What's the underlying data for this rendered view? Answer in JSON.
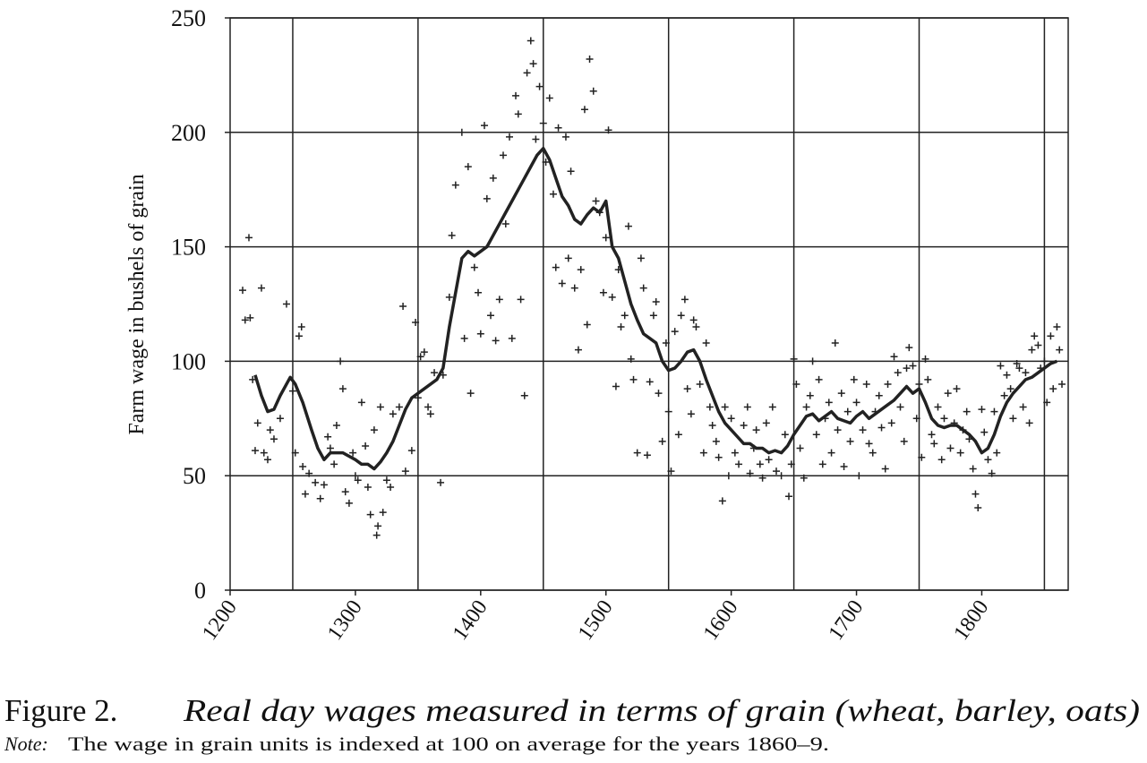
{
  "chart_data": {
    "type": "scatter",
    "y_label": "Farm wage in bushels of grain",
    "caption_label": "Figure 2.",
    "caption": "Real day wages measured in terms of grain (wheat, barley, oats)",
    "note_label": "Note:",
    "note": "The wage in grain units is indexed at 100 on average for the years 1860–9.",
    "xlim": [
      1200,
      1869
    ],
    "ylim": [
      0,
      250
    ],
    "xticks": [
      1200,
      1300,
      1400,
      1500,
      1600,
      1700,
      1800
    ],
    "xgrid": [
      1250,
      1350,
      1450,
      1550,
      1650,
      1750,
      1850
    ],
    "yticks": [
      0,
      50,
      100,
      150,
      200,
      250
    ],
    "grid": true,
    "series": [
      {
        "type": "scatter",
        "color": "#222222",
        "x": [
          1210,
          1212,
          1215,
          1216,
          1218,
          1220,
          1222,
          1225,
          1227,
          1230,
          1232,
          1235,
          1240,
          1245,
          1250,
          1252,
          1255,
          1257,
          1258,
          1260,
          1263,
          1268,
          1272,
          1275,
          1278,
          1280,
          1283,
          1285,
          1288,
          1290,
          1292,
          1295,
          1298,
          1300,
          1302,
          1305,
          1308,
          1310,
          1312,
          1315,
          1317,
          1318,
          1320,
          1322,
          1325,
          1328,
          1330,
          1335,
          1338,
          1340,
          1345,
          1348,
          1350,
          1352,
          1355,
          1358,
          1360,
          1363,
          1368,
          1370,
          1375,
          1377,
          1380,
          1385,
          1387,
          1390,
          1392,
          1395,
          1398,
          1400,
          1403,
          1405,
          1408,
          1410,
          1412,
          1415,
          1418,
          1420,
          1423,
          1425,
          1428,
          1430,
          1432,
          1435,
          1437,
          1440,
          1442,
          1444,
          1447,
          1450,
          1452,
          1455,
          1458,
          1460,
          1462,
          1465,
          1468,
          1470,
          1472,
          1475,
          1478,
          1480,
          1483,
          1485,
          1487,
          1490,
          1492,
          1495,
          1498,
          1500,
          1502,
          1505,
          1508,
          1510,
          1512,
          1515,
          1518,
          1520,
          1522,
          1525,
          1528,
          1530,
          1533,
          1535,
          1538,
          1540,
          1542,
          1545,
          1548,
          1550,
          1552,
          1555,
          1558,
          1560,
          1563,
          1565,
          1568,
          1570,
          1572,
          1575,
          1578,
          1580,
          1583,
          1585,
          1588,
          1590,
          1593,
          1595,
          1598,
          1600,
          1603,
          1606,
          1610,
          1613,
          1615,
          1618,
          1620,
          1623,
          1625,
          1628,
          1630,
          1633,
          1636,
          1640,
          1643,
          1646,
          1648,
          1650,
          1652,
          1655,
          1658,
          1660,
          1663,
          1665,
          1668,
          1670,
          1673,
          1675,
          1678,
          1680,
          1683,
          1685,
          1688,
          1690,
          1693,
          1695,
          1698,
          1700,
          1702,
          1705,
          1708,
          1710,
          1713,
          1715,
          1718,
          1720,
          1723,
          1725,
          1728,
          1730,
          1733,
          1735,
          1738,
          1740,
          1742,
          1745,
          1748,
          1750,
          1752,
          1755,
          1757,
          1760,
          1762,
          1765,
          1768,
          1770,
          1773,
          1775,
          1778,
          1780,
          1783,
          1785,
          1788,
          1790,
          1793,
          1795,
          1797,
          1800,
          1802,
          1805,
          1808,
          1810,
          1812,
          1815,
          1818,
          1820,
          1823,
          1825,
          1828,
          1830,
          1833,
          1835,
          1838,
          1840,
          1842,
          1845,
          1847,
          1850,
          1852,
          1855,
          1857,
          1860,
          1862,
          1864
        ],
        "values": [
          131,
          118,
          154,
          119,
          92,
          61,
          73,
          132,
          60,
          57,
          70,
          66,
          75,
          125,
          87,
          60,
          111,
          115,
          54,
          42,
          51,
          47,
          40,
          46,
          67,
          62,
          55,
          72,
          100,
          88,
          43,
          38,
          60,
          50,
          48,
          82,
          63,
          45,
          33,
          70,
          24,
          28,
          80,
          34,
          48,
          45,
          77,
          80,
          124,
          52,
          61,
          117,
          84,
          102,
          104,
          80,
          77,
          95,
          47,
          94,
          128,
          155,
          177,
          200,
          110,
          185,
          86,
          141,
          130,
          112,
          203,
          171,
          120,
          180,
          109,
          127,
          190,
          160,
          198,
          110,
          216,
          208,
          127,
          85,
          226,
          240,
          230,
          197,
          220,
          204,
          187,
          215,
          173,
          141,
          202,
          134,
          198,
          145,
          183,
          132,
          105,
          140,
          210,
          116,
          232,
          218,
          170,
          165,
          130,
          154,
          201,
          128,
          89,
          140,
          115,
          120,
          159,
          101,
          92,
          60,
          145,
          132,
          59,
          91,
          120,
          126,
          86,
          65,
          108,
          78,
          52,
          113,
          68,
          120,
          127,
          88,
          77,
          118,
          115,
          90,
          60,
          108,
          80,
          72,
          65,
          58,
          39,
          80,
          50,
          75,
          60,
          55,
          72,
          80,
          51,
          62,
          70,
          55,
          49,
          73,
          57,
          80,
          52,
          50,
          68,
          41,
          55,
          101,
          90,
          62,
          49,
          80,
          85,
          100,
          68,
          92,
          55,
          75,
          82,
          60,
          108,
          70,
          86,
          54,
          78,
          65,
          92,
          82,
          50,
          70,
          90,
          64,
          60,
          78,
          85,
          71,
          53,
          90,
          73,
          102,
          95,
          80,
          65,
          97,
          106,
          98,
          75,
          90,
          58,
          101,
          92,
          68,
          64,
          80,
          57,
          75,
          86,
          62,
          73,
          88,
          60,
          70,
          78,
          66,
          53,
          42,
          36,
          79,
          69,
          57,
          51,
          78,
          60,
          98,
          85,
          94,
          88,
          75,
          99,
          97,
          80,
          95,
          73,
          105,
          111,
          107,
          97,
          100,
          82,
          111,
          88,
          115,
          105,
          90
        ]
      },
      {
        "type": "line",
        "color": "#222222",
        "x": [
          1220,
          1225,
          1230,
          1235,
          1240,
          1248,
          1252,
          1258,
          1265,
          1270,
          1275,
          1280,
          1290,
          1300,
          1305,
          1310,
          1315,
          1320,
          1325,
          1330,
          1335,
          1340,
          1345,
          1350,
          1355,
          1360,
          1365,
          1370,
          1375,
          1380,
          1385,
          1390,
          1395,
          1400,
          1405,
          1410,
          1415,
          1420,
          1425,
          1430,
          1435,
          1440,
          1445,
          1450,
          1455,
          1460,
          1465,
          1470,
          1475,
          1480,
          1485,
          1490,
          1495,
          1500,
          1505,
          1510,
          1515,
          1520,
          1525,
          1530,
          1535,
          1540,
          1545,
          1550,
          1555,
          1560,
          1565,
          1570,
          1575,
          1580,
          1585,
          1590,
          1595,
          1600,
          1605,
          1610,
          1615,
          1620,
          1625,
          1630,
          1635,
          1640,
          1645,
          1650,
          1655,
          1660,
          1665,
          1670,
          1675,
          1680,
          1685,
          1690,
          1695,
          1700,
          1705,
          1710,
          1715,
          1720,
          1725,
          1730,
          1735,
          1740,
          1745,
          1750,
          1755,
          1760,
          1765,
          1770,
          1775,
          1780,
          1785,
          1790,
          1795,
          1800,
          1805,
          1810,
          1815,
          1820,
          1825,
          1830,
          1835,
          1840,
          1845,
          1850,
          1855,
          1860
        ],
        "values": [
          94,
          85,
          78,
          79,
          85,
          93,
          90,
          82,
          70,
          62,
          57,
          60,
          60,
          57,
          55,
          55,
          53,
          56,
          60,
          65,
          72,
          79,
          84,
          86,
          88,
          90,
          92,
          97,
          115,
          130,
          145,
          148,
          146,
          148,
          150,
          155,
          160,
          165,
          170,
          175,
          180,
          185,
          190,
          193,
          188,
          180,
          172,
          168,
          162,
          160,
          164,
          167,
          165,
          170,
          150,
          145,
          135,
          125,
          118,
          112,
          110,
          108,
          100,
          96,
          97,
          100,
          104,
          105,
          100,
          92,
          85,
          78,
          73,
          70,
          67,
          64,
          64,
          62,
          62,
          60,
          61,
          60,
          63,
          68,
          72,
          76,
          77,
          74,
          76,
          78,
          75,
          74,
          73,
          76,
          78,
          75,
          77,
          79,
          81,
          83,
          86,
          89,
          86,
          88,
          82,
          75,
          72,
          71,
          72,
          72,
          70,
          68,
          65,
          60,
          62,
          68,
          76,
          82,
          86,
          89,
          92,
          93,
          95,
          97,
          99,
          100
        ]
      }
    ]
  }
}
